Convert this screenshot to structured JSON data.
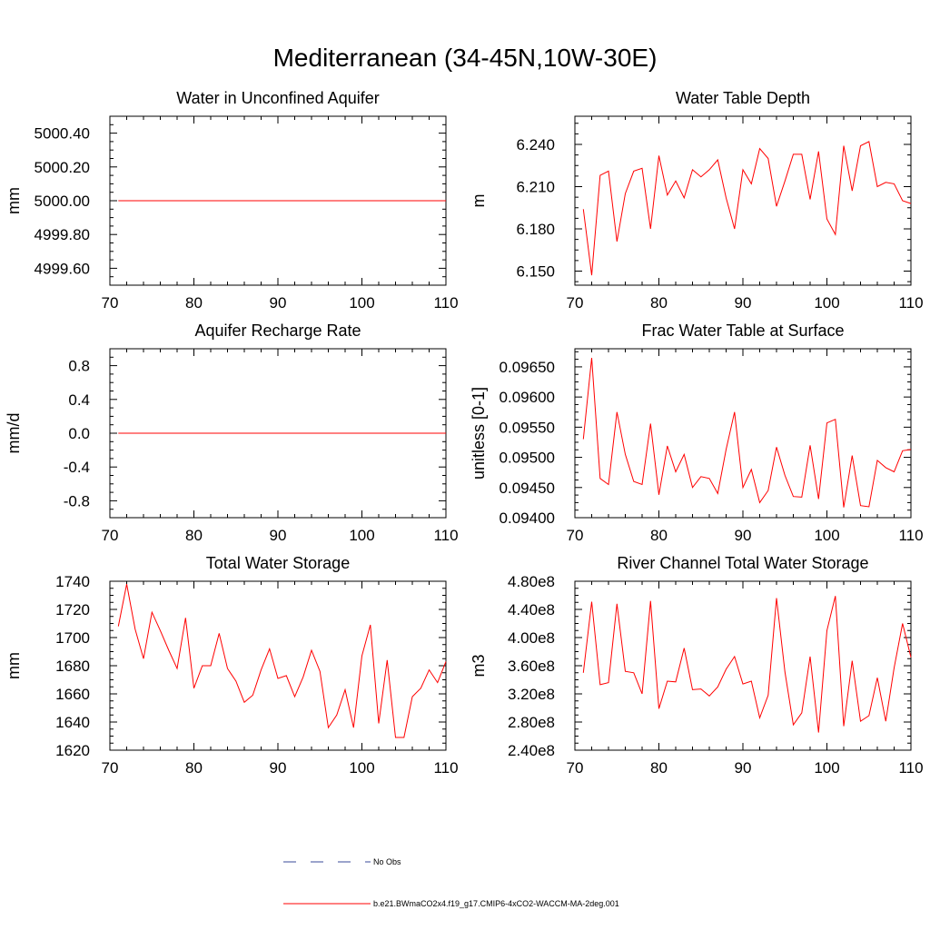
{
  "title": "Mediterranean (34-45N,10W-30E)",
  "legend": [
    {
      "label": "No Obs",
      "color": "#3a4a9a",
      "dashed": true
    },
    {
      "label": "b.e21.BWmaCO2x4.f19_g17.CMIP6-4xCO2-WACCM-MA-2deg.001",
      "color": "#ff0000",
      "dashed": false
    }
  ],
  "series_color": "#ff0000",
  "chart_data": [
    {
      "type": "line",
      "title": "Water in Unconfined Aquifer",
      "ylabel": "mm",
      "xlim": [
        70,
        110
      ],
      "ylim": [
        4999.5,
        5000.5
      ],
      "xticks": [
        "70",
        "80",
        "90",
        "100",
        "110"
      ],
      "yticks": [
        "4999.60",
        "4999.80",
        "5000.00",
        "5000.20",
        "5000.40"
      ],
      "ytick_values": [
        4999.6,
        4999.8,
        5000.0,
        5000.2,
        5000.4
      ],
      "x": [
        71,
        110
      ],
      "values": [
        5000.0,
        5000.0
      ]
    },
    {
      "type": "line",
      "title": "Water Table Depth",
      "ylabel": "m",
      "xlim": [
        70,
        110
      ],
      "ylim": [
        6.14,
        6.26
      ],
      "xticks": [
        "70",
        "80",
        "90",
        "100",
        "110"
      ],
      "yticks": [
        "6.150",
        "6.180",
        "6.210",
        "6.240"
      ],
      "ytick_values": [
        6.15,
        6.18,
        6.21,
        6.24
      ],
      "x": [
        71,
        72,
        73,
        74,
        75,
        76,
        77,
        78,
        79,
        80,
        81,
        82,
        83,
        84,
        85,
        86,
        87,
        88,
        89,
        90,
        91,
        92,
        93,
        94,
        95,
        96,
        97,
        98,
        99,
        100,
        101,
        102,
        103,
        104,
        105,
        106,
        107,
        108,
        109,
        110
      ],
      "values": [
        6.194,
        6.147,
        6.218,
        6.221,
        6.171,
        6.205,
        6.221,
        6.223,
        6.18,
        6.232,
        6.204,
        6.214,
        6.202,
        6.222,
        6.217,
        6.222,
        6.229,
        6.202,
        6.18,
        6.222,
        6.212,
        6.237,
        6.23,
        6.196,
        6.214,
        6.233,
        6.233,
        6.201,
        6.235,
        6.187,
        6.176,
        6.239,
        6.207,
        6.239,
        6.242,
        6.21,
        6.213,
        6.212,
        6.2,
        6.198
      ]
    },
    {
      "type": "line",
      "title": "Aquifer Recharge Rate",
      "ylabel": "mm/d",
      "xlim": [
        70,
        110
      ],
      "ylim": [
        -1.0,
        1.0
      ],
      "xticks": [
        "70",
        "80",
        "90",
        "100",
        "110"
      ],
      "yticks": [
        "-0.8",
        "-0.4",
        "0.0",
        "0.4",
        "0.8"
      ],
      "ytick_values": [
        -0.8,
        -0.4,
        0.0,
        0.4,
        0.8
      ],
      "x": [
        71,
        110
      ],
      "values": [
        0.0,
        0.0
      ]
    },
    {
      "type": "line",
      "title": "Frac Water Table at Surface",
      "ylabel": "unitless [0-1]",
      "xlim": [
        70,
        110
      ],
      "ylim": [
        0.094,
        0.0968
      ],
      "xticks": [
        "70",
        "80",
        "90",
        "100",
        "110"
      ],
      "yticks": [
        "0.09400",
        "0.09450",
        "0.09500",
        "0.09550",
        "0.09600",
        "0.09650"
      ],
      "ytick_values": [
        0.094,
        0.0945,
        0.095,
        0.0955,
        0.096,
        0.0965
      ],
      "x": [
        71,
        72,
        73,
        74,
        75,
        76,
        77,
        78,
        79,
        80,
        81,
        82,
        83,
        84,
        85,
        86,
        87,
        88,
        89,
        90,
        91,
        92,
        93,
        94,
        95,
        96,
        97,
        98,
        99,
        100,
        101,
        102,
        103,
        104,
        105,
        106,
        107,
        108,
        109,
        110
      ],
      "values": [
        0.0953,
        0.09665,
        0.09465,
        0.09455,
        0.09575,
        0.09505,
        0.0946,
        0.09455,
        0.09556,
        0.09438,
        0.09519,
        0.09476,
        0.09505,
        0.0945,
        0.09468,
        0.09465,
        0.0944,
        0.09513,
        0.09575,
        0.0945,
        0.0948,
        0.09425,
        0.09445,
        0.09517,
        0.0947,
        0.09435,
        0.09434,
        0.0952,
        0.09431,
        0.09557,
        0.09563,
        0.09417,
        0.09503,
        0.0942,
        0.09418,
        0.09495,
        0.09483,
        0.09476,
        0.09511,
        0.09513
      ]
    },
    {
      "type": "line",
      "title": "Total Water Storage",
      "ylabel": "mm",
      "xlim": [
        70,
        110
      ],
      "ylim": [
        1620,
        1740
      ],
      "xticks": [
        "70",
        "80",
        "90",
        "100",
        "110"
      ],
      "yticks": [
        "1620",
        "1640",
        "1660",
        "1680",
        "1700",
        "1720",
        "1740"
      ],
      "ytick_values": [
        1620,
        1640,
        1660,
        1680,
        1700,
        1720,
        1740
      ],
      "x": [
        71,
        72,
        73,
        74,
        75,
        76,
        77,
        78,
        79,
        80,
        81,
        82,
        83,
        84,
        85,
        86,
        87,
        88,
        89,
        90,
        91,
        92,
        93,
        94,
        95,
        96,
        97,
        98,
        99,
        100,
        101,
        102,
        103,
        104,
        105,
        106,
        107,
        108,
        109,
        110
      ],
      "values": [
        1708,
        1738,
        1706,
        1685,
        1718,
        1705,
        1691,
        1678,
        1714,
        1664,
        1680,
        1680,
        1703,
        1678,
        1669,
        1654,
        1659,
        1677,
        1692,
        1671,
        1673,
        1658,
        1672,
        1691,
        1676,
        1636,
        1645,
        1663,
        1636,
        1687,
        1709,
        1639,
        1684,
        1629,
        1629,
        1658,
        1664,
        1677,
        1668,
        1683
      ]
    },
    {
      "type": "line",
      "title": "River Channel Total Water Storage",
      "ylabel": "m3",
      "xlim": [
        70,
        110
      ],
      "ylim": [
        240000000,
        480000000
      ],
      "xticks": [
        "70",
        "80",
        "90",
        "100",
        "110"
      ],
      "yticks": [
        "2.40e8",
        "2.80e8",
        "3.20e8",
        "3.60e8",
        "4.00e8",
        "4.40e8",
        "4.80e8"
      ],
      "ytick_values": [
        240000000,
        280000000,
        320000000,
        360000000,
        400000000,
        440000000,
        480000000
      ],
      "x": [
        71,
        72,
        73,
        74,
        75,
        76,
        77,
        78,
        79,
        80,
        81,
        82,
        83,
        84,
        85,
        86,
        87,
        88,
        89,
        90,
        91,
        92,
        93,
        94,
        95,
        96,
        97,
        98,
        99,
        100,
        101,
        102,
        103,
        104,
        105,
        106,
        107,
        108,
        109,
        110
      ],
      "values": [
        350000000,
        451000000,
        333000000,
        336000000,
        448000000,
        352000000,
        350000000,
        320000000,
        452000000,
        299000000,
        338000000,
        337000000,
        385000000,
        326000000,
        327000000,
        317000000,
        330000000,
        355000000,
        373000000,
        334000000,
        338000000,
        286000000,
        318000000,
        456000000,
        351000000,
        276000000,
        293000000,
        373000000,
        265000000,
        410000000,
        459000000,
        274000000,
        367000000,
        281000000,
        289000000,
        343000000,
        281000000,
        357000000,
        420000000,
        372000000
      ]
    }
  ]
}
